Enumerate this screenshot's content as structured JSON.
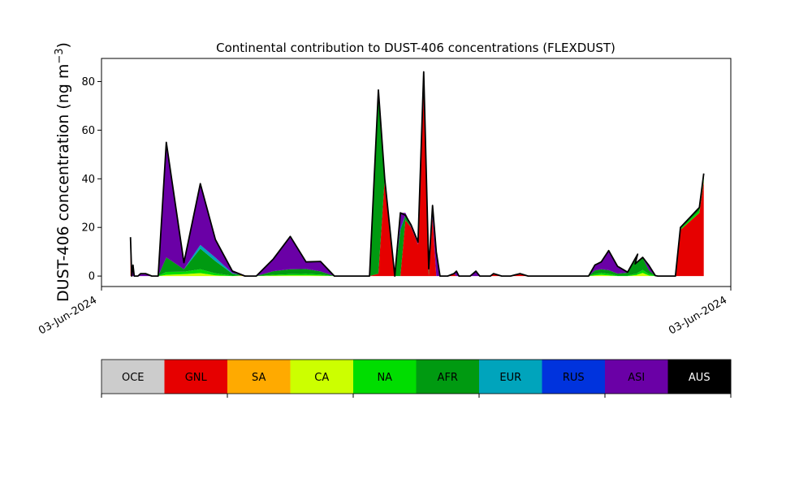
{
  "chart_data": {
    "type": "area",
    "stacked": true,
    "title": "Continental contribution to DUST-406 concentrations (FLEXDUST)",
    "ylabel_main": "DUST-406 concentration (ng m",
    "ylabel_sup": "−3",
    "ylabel_close": ")",
    "xlabel": "",
    "xticks": [
      "03-Jun-2024",
      "03-Jun-2024"
    ],
    "yticks": [
      0,
      20,
      40,
      60,
      80
    ],
    "ylim": [
      -4.3,
      89.5
    ],
    "xlim": [
      0,
      100
    ],
    "grid": false,
    "legend_placement": "bottom (color bar)",
    "colors": {
      "OCE": "#cccccc",
      "GNL": "#e60000",
      "SA": "#ffaa00",
      "CA": "#ccff00",
      "NA": "#00dd00",
      "AFR": "#009a11",
      "EUR": "#00a4bc",
      "RUS": "#0033dd",
      "ASI": "#6a00a6",
      "AUS": "#000000"
    },
    "legend": [
      "OCE",
      "GNL",
      "SA",
      "CA",
      "NA",
      "AFR",
      "EUR",
      "RUS",
      "ASI",
      "AUS"
    ],
    "x": [
      4.6,
      4.8,
      5.0,
      5.2,
      5.4,
      5.6,
      5.8,
      6.2,
      7.0,
      8.0,
      9.0,
      10.3,
      13.1,
      15.7,
      18.1,
      20.8,
      22.8,
      24.6,
      27.3,
      30.0,
      32.5,
      34.8,
      37.0,
      38.6,
      40.1,
      41.8,
      42.6,
      44.0,
      45.0,
      46.6,
      47.5,
      48.3,
      49.2,
      50.3,
      51.2,
      52.0,
      52.6,
      53.2,
      53.8,
      55.0,
      56.0,
      56.4,
      56.8,
      57.4,
      58.0,
      58.6,
      59.5,
      60.1,
      61.8,
      62.3,
      63.6,
      65.0,
      66.5,
      67.8,
      69.3,
      70.2,
      71.3,
      71.8,
      72.3,
      72.6,
      73.0,
      73.4,
      74.0,
      75.0,
      75.5,
      75.9,
      76.2,
      76.6,
      77.0,
      77.4,
      78.4,
      79.4,
      80.6,
      82.0,
      83.6,
      85.2,
      84.8,
      86.0,
      87.0,
      88.0,
      88.4,
      89.0,
      89.4,
      89.8,
      90.2,
      90.8,
      91.2,
      92.0,
      95.0,
      95.7
    ],
    "series": [
      {
        "name": "GNL",
        "values": [
          11,
          0,
          0,
          0,
          0,
          0,
          0,
          0,
          0,
          0,
          0,
          0,
          0,
          0,
          0,
          0,
          0,
          0,
          0,
          0,
          0,
          0,
          0,
          0,
          0,
          0,
          0,
          1,
          40,
          0,
          0,
          23,
          20,
          13,
          75,
          0,
          24,
          0,
          0,
          0,
          1,
          0,
          0,
          0,
          0,
          0,
          0,
          0,
          0,
          1,
          0,
          0,
          1,
          0,
          0,
          0,
          0,
          0,
          0,
          0,
          0,
          0,
          0,
          0,
          0,
          0,
          0,
          0,
          0,
          0,
          0,
          0,
          0,
          0,
          0,
          0,
          0,
          0,
          0,
          0,
          0,
          0,
          0,
          0,
          0,
          0,
          0,
          19,
          26,
          39
        ]
      },
      {
        "name": "SA",
        "values": [
          0,
          0,
          0,
          0,
          0,
          0,
          0,
          0,
          0,
          0,
          0,
          0,
          0,
          0,
          0,
          0,
          0.3,
          0,
          0,
          0,
          0,
          0,
          0,
          0,
          0,
          0,
          0,
          0,
          0,
          0,
          0,
          0,
          0,
          0,
          0,
          0,
          0,
          0,
          0,
          0,
          0,
          0,
          0,
          0,
          0,
          0,
          0,
          0,
          0,
          0,
          0,
          0,
          0,
          0,
          0,
          0,
          0,
          0,
          0,
          0,
          0,
          0,
          0,
          0,
          0,
          0,
          0,
          0,
          0,
          0,
          0,
          0,
          0,
          0,
          0,
          0,
          0,
          0,
          0,
          0,
          0,
          0,
          0,
          0,
          0,
          0,
          0,
          0,
          0,
          0
        ]
      },
      {
        "name": "CA",
        "values": [
          0,
          0,
          0,
          0,
          0,
          0,
          0,
          0,
          0,
          0,
          0,
          0.5,
          0.8,
          1.2,
          0.3,
          0,
          0,
          0,
          0.2,
          0.3,
          0.3,
          0.2,
          0,
          0,
          0,
          0,
          0,
          0,
          0,
          0,
          0,
          0,
          0,
          0,
          0,
          0,
          0,
          0,
          0,
          0,
          0,
          0,
          0,
          0,
          0,
          0,
          0,
          0,
          0,
          0,
          0,
          0,
          0,
          0,
          0,
          0,
          0,
          0,
          0,
          0,
          0,
          0,
          0,
          0,
          0,
          0,
          0,
          0,
          0,
          0,
          0.3,
          0.5,
          0.3,
          0,
          0,
          0.5,
          0.3,
          1.3,
          0.2,
          0,
          0,
          0,
          0,
          0,
          0,
          0,
          0,
          0,
          0,
          0
        ]
      },
      {
        "name": "NA",
        "values": [
          0,
          0,
          0,
          0,
          0,
          0,
          0,
          0,
          0,
          0,
          0,
          1.2,
          1.0,
          1.6,
          0.8,
          0.2,
          0,
          0,
          0.3,
          0.5,
          0.6,
          0.4,
          0,
          0,
          0,
          0,
          0,
          0,
          0,
          0,
          0,
          0,
          0,
          0,
          0,
          0,
          0,
          0,
          0,
          0,
          0,
          0,
          0,
          0,
          0,
          0,
          0,
          0,
          0,
          0,
          0,
          0,
          0,
          0,
          0,
          0,
          0,
          0,
          0,
          0,
          0,
          0,
          0,
          0,
          0,
          0,
          0,
          0,
          0,
          0,
          0.5,
          0.8,
          0.6,
          0.2,
          0.2,
          0.6,
          0.4,
          1.2,
          0.6,
          0.2,
          0,
          0,
          0,
          0,
          0,
          0,
          0,
          0.4,
          0.9,
          1.2
        ]
      },
      {
        "name": "AFR",
        "values": [
          0,
          0,
          0,
          0,
          0,
          0,
          0,
          0,
          0,
          0,
          0,
          6,
          1,
          8.5,
          5,
          0.8,
          0,
          0,
          1.5,
          2,
          2,
          1.3,
          0,
          0,
          0,
          0,
          0,
          72,
          0,
          0,
          19,
          2,
          0,
          0,
          0,
          2,
          0,
          0,
          0,
          0,
          0,
          0,
          0,
          0,
          0,
          0,
          0,
          0,
          0,
          0,
          0,
          0,
          0,
          0,
          0,
          0,
          0,
          0,
          0,
          0,
          0,
          0,
          0,
          0,
          0,
          0,
          0,
          0,
          0,
          0,
          1.5,
          1.5,
          1.5,
          0.8,
          1.2,
          8,
          4,
          5,
          1.5,
          0,
          0,
          0,
          0,
          0,
          0,
          0,
          0,
          0.6,
          1.3,
          2
        ]
      },
      {
        "name": "EUR",
        "values": [
          0,
          0,
          0,
          0,
          0,
          0,
          0,
          0,
          0,
          0,
          0,
          0,
          0,
          1.5,
          1.5,
          0.2,
          0,
          0,
          0,
          0,
          0,
          0,
          0,
          0,
          0,
          0,
          0,
          0,
          0,
          0,
          0,
          0,
          0,
          0,
          0,
          0,
          0,
          0,
          0,
          0,
          0,
          0,
          0,
          0,
          0,
          0,
          0,
          0,
          0,
          0,
          0,
          0,
          0,
          0,
          0,
          0,
          0,
          0,
          0,
          0,
          0,
          0,
          0,
          0,
          0,
          0,
          0,
          0,
          0,
          0,
          0,
          0,
          0,
          0,
          0,
          0,
          0,
          0,
          0,
          0,
          0,
          0,
          0,
          0,
          0,
          0,
          0,
          0,
          0,
          0
        ]
      },
      {
        "name": "RUS",
        "values": [
          0,
          0,
          0,
          0,
          0,
          0,
          0,
          0,
          0,
          0,
          0,
          0,
          0,
          0,
          0,
          0,
          0,
          0,
          0,
          0,
          0,
          0,
          0,
          0,
          0,
          0,
          0,
          1,
          0,
          0,
          1,
          0,
          0,
          0,
          2,
          1,
          1,
          0,
          0,
          0,
          0,
          0,
          0,
          0,
          0,
          0,
          0,
          0,
          0,
          0,
          0,
          0,
          0,
          0,
          0,
          0,
          0,
          0,
          0,
          0,
          0,
          0,
          0,
          0,
          0,
          0,
          0,
          0,
          0,
          0,
          0,
          0,
          0,
          0,
          0,
          0,
          0,
          0,
          0,
          0,
          0,
          0,
          0,
          0,
          0,
          0,
          0,
          0,
          0,
          0
        ]
      },
      {
        "name": "ASI",
        "values": [
          5,
          0,
          4,
          0,
          0,
          0,
          0,
          1,
          1,
          0,
          0,
          47,
          3,
          25,
          7,
          1.2,
          0,
          0,
          5,
          13,
          3,
          4,
          0,
          0,
          0,
          0,
          0,
          2,
          0,
          0,
          6,
          1,
          1,
          1,
          6,
          0,
          4,
          10,
          0,
          0,
          0,
          2,
          0,
          0,
          0,
          0,
          2,
          0,
          0,
          0,
          0,
          0,
          0,
          0,
          0,
          0,
          0,
          0,
          0,
          0,
          0,
          0,
          0,
          0,
          0,
          0,
          0,
          0,
          0,
          0,
          2,
          3,
          8,
          3,
          0.2,
          0,
          0,
          0.5,
          2,
          0,
          0,
          0,
          0,
          0,
          0,
          0,
          0,
          0,
          0,
          0
        ]
      },
      {
        "name": "AUS",
        "values": [
          0,
          0,
          0,
          0,
          0,
          0,
          0,
          0,
          0,
          0,
          0,
          0,
          0,
          0,
          0,
          0,
          0,
          0,
          0,
          0,
          0,
          0,
          0,
          0,
          0,
          0,
          0,
          0,
          0,
          0,
          0,
          0,
          0,
          0,
          0,
          0,
          0,
          0,
          0,
          0,
          0,
          0,
          0,
          0,
          0,
          0,
          0,
          0,
          0,
          0,
          0,
          0,
          0,
          0,
          0,
          0,
          0,
          0,
          0,
          0,
          0,
          0,
          0,
          0,
          0,
          0,
          0,
          0,
          0,
          0,
          0,
          0,
          0,
          0,
          0,
          0,
          0,
          0,
          0,
          0,
          0,
          0,
          0,
          0,
          0,
          0,
          0,
          0,
          0,
          0
        ]
      }
    ],
    "total": [
      16,
      0,
      4.5,
      0,
      0,
      0,
      0,
      1,
      1,
      0,
      0,
      55,
      5.5,
      38,
      15,
      2,
      0,
      0,
      7,
      16.3,
      5.8,
      6,
      0,
      0,
      0,
      0,
      0,
      76.5,
      40,
      0,
      26,
      25,
      21,
      14,
      84,
      3,
      29,
      10,
      0,
      0,
      1,
      2,
      0,
      0,
      0,
      0,
      2,
      0,
      0,
      1,
      0,
      0,
      1,
      0,
      0,
      0,
      0,
      0,
      0,
      0,
      0,
      0,
      0,
      0,
      0,
      0,
      0,
      0,
      0,
      0,
      4.5,
      5.8,
      10.5,
      4,
      1.6,
      9,
      5,
      7.7,
      4.3,
      0.2,
      0,
      0,
      0,
      0,
      0,
      0,
      0,
      20,
      28.2,
      42.2
    ]
  }
}
